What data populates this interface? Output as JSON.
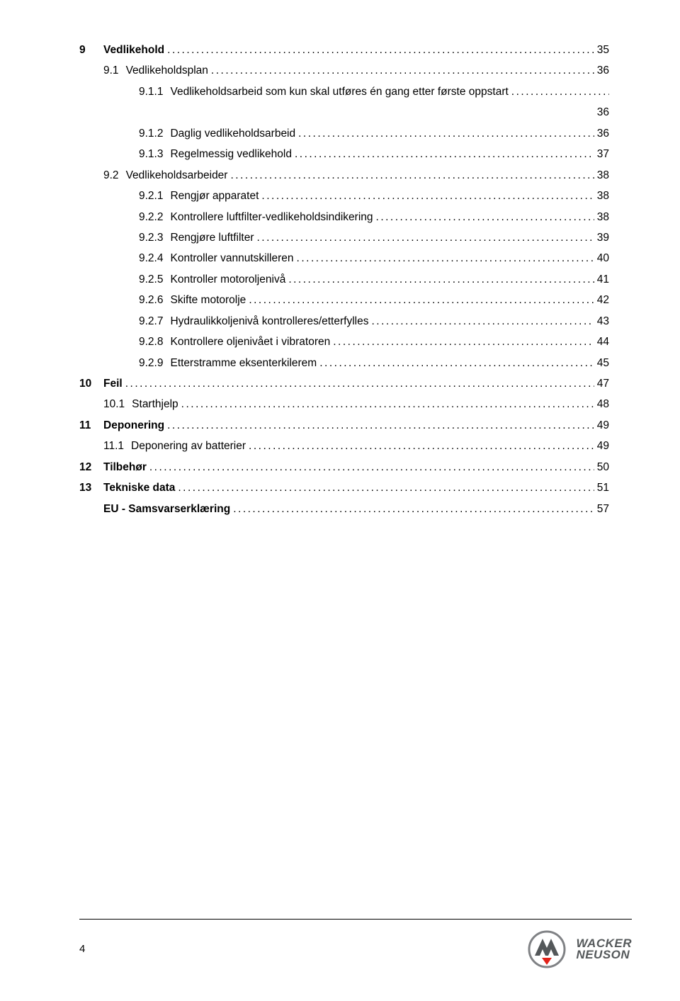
{
  "toc": [
    {
      "level": 0,
      "num": "9",
      "title": "Vedlikehold",
      "page": "35",
      "bold": true
    },
    {
      "level": 1,
      "num": "9.1",
      "title": "Vedlikeholdsplan",
      "page": "36",
      "bold": false
    },
    {
      "level": 2,
      "num": "9.1.1",
      "title": "Vedlikeholdsarbeid som kun skal utføres én gang etter første oppstart",
      "page": "36",
      "bold": false,
      "wrapPage": true
    },
    {
      "level": 2,
      "num": "9.1.2",
      "title": "Daglig vedlikeholdsarbeid",
      "page": "36",
      "bold": false
    },
    {
      "level": 2,
      "num": "9.1.3",
      "title": "Regelmessig vedlikehold",
      "page": "37",
      "bold": false
    },
    {
      "level": 1,
      "num": "9.2",
      "title": "Vedlikeholdsarbeider",
      "page": "38",
      "bold": false
    },
    {
      "level": 2,
      "num": "9.2.1",
      "title": "Rengjør apparatet",
      "page": "38",
      "bold": false
    },
    {
      "level": 2,
      "num": "9.2.2",
      "title": "Kontrollere luftfilter-vedlikeholdsindikering",
      "page": "38",
      "bold": false
    },
    {
      "level": 2,
      "num": "9.2.3",
      "title": "Rengjøre luftfilter",
      "page": "39",
      "bold": false
    },
    {
      "level": 2,
      "num": "9.2.4",
      "title": "Kontroller vannutskilleren",
      "page": "40",
      "bold": false
    },
    {
      "level": 2,
      "num": "9.2.5",
      "title": "Kontroller motoroljenivå",
      "page": "41",
      "bold": false
    },
    {
      "level": 2,
      "num": "9.2.6",
      "title": "Skifte motorolje",
      "page": "42",
      "bold": false
    },
    {
      "level": 2,
      "num": "9.2.7",
      "title": "Hydraulikkoljenivå kontrolleres/etterfylles",
      "page": "43",
      "bold": false
    },
    {
      "level": 2,
      "num": "9.2.8",
      "title": "Kontrollere oljenivået i vibratoren",
      "page": "44",
      "bold": false
    },
    {
      "level": 2,
      "num": "9.2.9",
      "title": "Etterstramme eksenterkilerem",
      "page": "45",
      "bold": false
    },
    {
      "level": 0,
      "num": "10",
      "title": "Feil",
      "page": "47",
      "bold": true
    },
    {
      "level": 1,
      "num": "10.1",
      "title": "Starthjelp",
      "page": "48",
      "bold": false
    },
    {
      "level": 0,
      "num": "11",
      "title": "Deponering",
      "page": "49",
      "bold": true
    },
    {
      "level": 1,
      "num": "11.1",
      "title": "Deponering av batterier",
      "page": "49",
      "bold": false
    },
    {
      "level": 0,
      "num": "12",
      "title": "Tilbehør",
      "page": "50",
      "bold": true
    },
    {
      "level": 0,
      "num": "13",
      "title": "Tekniske data",
      "page": "51",
      "bold": true
    },
    {
      "level": 0,
      "num": "",
      "title": "EU - Samsvarserklæring",
      "page": "57",
      "bold": true,
      "indentAsSub": true
    }
  ],
  "footer": {
    "pageNumber": "4",
    "brandLine1": "WACKER",
    "brandLine2": "NEUSON",
    "logoColors": {
      "outerRing": "#808285",
      "circleFill": "#ffffff",
      "accent": "#e2231a",
      "tri": "#54585a"
    }
  }
}
